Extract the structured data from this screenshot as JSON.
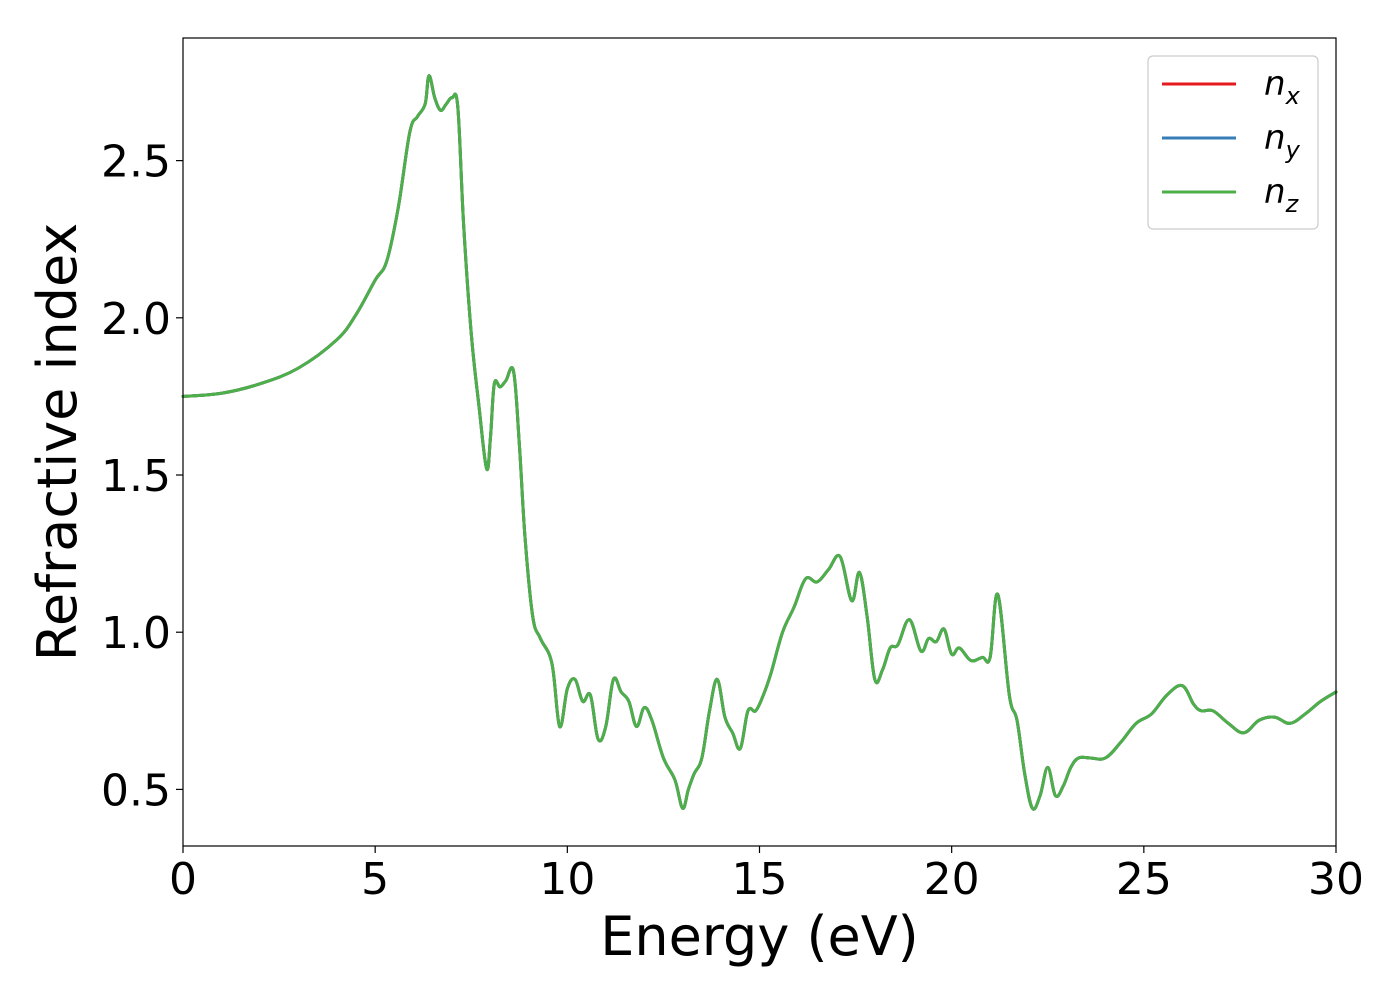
{
  "chart_data": {
    "type": "line",
    "xlabel": "Energy (eV)",
    "ylabel": "Refractive index",
    "xlim": [
      0,
      30
    ],
    "ylim": [
      0.32,
      2.89
    ],
    "xticks": [
      0,
      5,
      10,
      15,
      20,
      25,
      30
    ],
    "xtick_labels": [
      "0",
      "5",
      "10",
      "15",
      "20",
      "25",
      "30"
    ],
    "yticks": [
      0.5,
      1.0,
      1.5,
      2.0,
      2.5
    ],
    "ytick_labels": [
      "0.5",
      "1.0",
      "1.5",
      "2.0",
      "2.5"
    ],
    "grid": false,
    "legend_position": "top-right",
    "series": [
      {
        "name": "n",
        "sub": "x",
        "color": "#e41a1c",
        "x": [
          0,
          1,
          2,
          3,
          4,
          4.5,
          5,
          5.3,
          5.6,
          5.9,
          6.1,
          6.3,
          6.4,
          6.55,
          6.7,
          6.85,
          7.0,
          7.15,
          7.3,
          7.5,
          7.7,
          7.9,
          8.0,
          8.1,
          8.25,
          8.4,
          8.6,
          8.75,
          8.9,
          9.1,
          9.3,
          9.6,
          9.8,
          10.0,
          10.2,
          10.4,
          10.6,
          10.8,
          11.0,
          11.2,
          11.4,
          11.6,
          11.8,
          12.0,
          12.2,
          12.5,
          12.8,
          13.0,
          13.15,
          13.3,
          13.5,
          13.7,
          13.9,
          14.1,
          14.3,
          14.5,
          14.7,
          14.9,
          15.1,
          15.3,
          15.6,
          15.9,
          16.2,
          16.5,
          16.8,
          17.1,
          17.4,
          17.6,
          17.8,
          18.0,
          18.2,
          18.4,
          18.6,
          18.9,
          19.2,
          19.4,
          19.6,
          19.8,
          20.0,
          20.2,
          20.5,
          20.8,
          21.0,
          21.2,
          21.5,
          21.7,
          21.9,
          22.1,
          22.3,
          22.5,
          22.7,
          22.9,
          23.1,
          23.3,
          23.6,
          24.0,
          24.4,
          24.8,
          25.2,
          25.6,
          26.0,
          26.3,
          26.5,
          26.8,
          27.2,
          27.6,
          28.0,
          28.4,
          28.8,
          29.2,
          29.6,
          30.0
        ],
        "y": [
          1.75,
          1.76,
          1.79,
          1.84,
          1.93,
          2.01,
          2.12,
          2.18,
          2.35,
          2.59,
          2.64,
          2.68,
          2.77,
          2.7,
          2.66,
          2.68,
          2.7,
          2.67,
          2.3,
          1.95,
          1.72,
          1.52,
          1.62,
          1.79,
          1.78,
          1.8,
          1.83,
          1.6,
          1.3,
          1.05,
          0.98,
          0.9,
          0.7,
          0.82,
          0.85,
          0.78,
          0.8,
          0.66,
          0.7,
          0.85,
          0.81,
          0.78,
          0.7,
          0.76,
          0.72,
          0.6,
          0.53,
          0.44,
          0.5,
          0.55,
          0.6,
          0.75,
          0.85,
          0.73,
          0.68,
          0.63,
          0.75,
          0.75,
          0.8,
          0.87,
          1.0,
          1.08,
          1.17,
          1.16,
          1.2,
          1.24,
          1.1,
          1.19,
          1.05,
          0.85,
          0.88,
          0.95,
          0.96,
          1.04,
          0.94,
          0.98,
          0.97,
          1.01,
          0.93,
          0.95,
          0.91,
          0.92,
          0.92,
          1.12,
          0.8,
          0.72,
          0.55,
          0.44,
          0.48,
          0.57,
          0.48,
          0.51,
          0.57,
          0.6,
          0.6,
          0.6,
          0.65,
          0.71,
          0.74,
          0.8,
          0.83,
          0.77,
          0.75,
          0.75,
          0.71,
          0.68,
          0.72,
          0.73,
          0.71,
          0.74,
          0.78,
          0.81
        ]
      },
      {
        "name": "n",
        "sub": "y",
        "color": "#377eb8",
        "x": [
          0,
          1,
          2,
          3,
          4,
          4.5,
          5,
          5.3,
          5.6,
          5.9,
          6.1,
          6.3,
          6.4,
          6.55,
          6.7,
          6.85,
          7.0,
          7.15,
          7.3,
          7.5,
          7.7,
          7.9,
          8.0,
          8.1,
          8.25,
          8.4,
          8.6,
          8.75,
          8.9,
          9.1,
          9.3,
          9.6,
          9.8,
          10.0,
          10.2,
          10.4,
          10.6,
          10.8,
          11.0,
          11.2,
          11.4,
          11.6,
          11.8,
          12.0,
          12.2,
          12.5,
          12.8,
          13.0,
          13.15,
          13.3,
          13.5,
          13.7,
          13.9,
          14.1,
          14.3,
          14.5,
          14.7,
          14.9,
          15.1,
          15.3,
          15.6,
          15.9,
          16.2,
          16.5,
          16.8,
          17.1,
          17.4,
          17.6,
          17.8,
          18.0,
          18.2,
          18.4,
          18.6,
          18.9,
          19.2,
          19.4,
          19.6,
          19.8,
          20.0,
          20.2,
          20.5,
          20.8,
          21.0,
          21.2,
          21.5,
          21.7,
          21.9,
          22.1,
          22.3,
          22.5,
          22.7,
          22.9,
          23.1,
          23.3,
          23.6,
          24.0,
          24.4,
          24.8,
          25.2,
          25.6,
          26.0,
          26.3,
          26.5,
          26.8,
          27.2,
          27.6,
          28.0,
          28.4,
          28.8,
          29.2,
          29.6,
          30.0
        ],
        "y": [
          1.75,
          1.76,
          1.79,
          1.84,
          1.93,
          2.01,
          2.12,
          2.18,
          2.35,
          2.59,
          2.64,
          2.68,
          2.77,
          2.7,
          2.66,
          2.68,
          2.7,
          2.67,
          2.3,
          1.95,
          1.72,
          1.52,
          1.62,
          1.79,
          1.78,
          1.8,
          1.83,
          1.6,
          1.3,
          1.05,
          0.98,
          0.9,
          0.7,
          0.82,
          0.85,
          0.78,
          0.8,
          0.66,
          0.7,
          0.85,
          0.81,
          0.78,
          0.7,
          0.76,
          0.72,
          0.6,
          0.53,
          0.44,
          0.5,
          0.55,
          0.6,
          0.75,
          0.85,
          0.73,
          0.68,
          0.63,
          0.75,
          0.75,
          0.8,
          0.87,
          1.0,
          1.08,
          1.17,
          1.16,
          1.2,
          1.24,
          1.1,
          1.19,
          1.05,
          0.85,
          0.88,
          0.95,
          0.96,
          1.04,
          0.94,
          0.98,
          0.97,
          1.01,
          0.93,
          0.95,
          0.91,
          0.92,
          0.92,
          1.12,
          0.8,
          0.72,
          0.55,
          0.44,
          0.48,
          0.57,
          0.48,
          0.51,
          0.57,
          0.6,
          0.6,
          0.6,
          0.65,
          0.71,
          0.74,
          0.8,
          0.83,
          0.77,
          0.75,
          0.75,
          0.71,
          0.68,
          0.72,
          0.73,
          0.71,
          0.74,
          0.78,
          0.81
        ]
      },
      {
        "name": "n",
        "sub": "z",
        "color": "#4daf4a",
        "x": [
          0,
          1,
          2,
          3,
          4,
          4.5,
          5,
          5.3,
          5.6,
          5.9,
          6.1,
          6.3,
          6.4,
          6.55,
          6.7,
          6.85,
          7.0,
          7.15,
          7.3,
          7.5,
          7.7,
          7.9,
          8.0,
          8.1,
          8.25,
          8.4,
          8.6,
          8.75,
          8.9,
          9.1,
          9.3,
          9.6,
          9.8,
          10.0,
          10.2,
          10.4,
          10.6,
          10.8,
          11.0,
          11.2,
          11.4,
          11.6,
          11.8,
          12.0,
          12.2,
          12.5,
          12.8,
          13.0,
          13.15,
          13.3,
          13.5,
          13.7,
          13.9,
          14.1,
          14.3,
          14.5,
          14.7,
          14.9,
          15.1,
          15.3,
          15.6,
          15.9,
          16.2,
          16.5,
          16.8,
          17.1,
          17.4,
          17.6,
          17.8,
          18.0,
          18.2,
          18.4,
          18.6,
          18.9,
          19.2,
          19.4,
          19.6,
          19.8,
          20.0,
          20.2,
          20.5,
          20.8,
          21.0,
          21.2,
          21.5,
          21.7,
          21.9,
          22.1,
          22.3,
          22.5,
          22.7,
          22.9,
          23.1,
          23.3,
          23.6,
          24.0,
          24.4,
          24.8,
          25.2,
          25.6,
          26.0,
          26.3,
          26.5,
          26.8,
          27.2,
          27.6,
          28.0,
          28.4,
          28.8,
          29.2,
          29.6,
          30.0
        ],
        "y": [
          1.75,
          1.76,
          1.79,
          1.84,
          1.93,
          2.01,
          2.12,
          2.18,
          2.35,
          2.59,
          2.64,
          2.68,
          2.77,
          2.7,
          2.66,
          2.68,
          2.7,
          2.67,
          2.3,
          1.95,
          1.72,
          1.52,
          1.62,
          1.79,
          1.78,
          1.8,
          1.83,
          1.6,
          1.3,
          1.05,
          0.98,
          0.9,
          0.7,
          0.82,
          0.85,
          0.78,
          0.8,
          0.66,
          0.7,
          0.85,
          0.81,
          0.78,
          0.7,
          0.76,
          0.72,
          0.6,
          0.53,
          0.44,
          0.5,
          0.55,
          0.6,
          0.75,
          0.85,
          0.73,
          0.68,
          0.63,
          0.75,
          0.75,
          0.8,
          0.87,
          1.0,
          1.08,
          1.17,
          1.16,
          1.2,
          1.24,
          1.1,
          1.19,
          1.05,
          0.85,
          0.88,
          0.95,
          0.96,
          1.04,
          0.94,
          0.98,
          0.97,
          1.01,
          0.93,
          0.95,
          0.91,
          0.92,
          0.92,
          1.12,
          0.8,
          0.72,
          0.55,
          0.44,
          0.48,
          0.57,
          0.48,
          0.51,
          0.57,
          0.6,
          0.6,
          0.6,
          0.65,
          0.71,
          0.74,
          0.8,
          0.83,
          0.77,
          0.75,
          0.75,
          0.71,
          0.68,
          0.72,
          0.73,
          0.71,
          0.74,
          0.78,
          0.81
        ]
      }
    ]
  }
}
